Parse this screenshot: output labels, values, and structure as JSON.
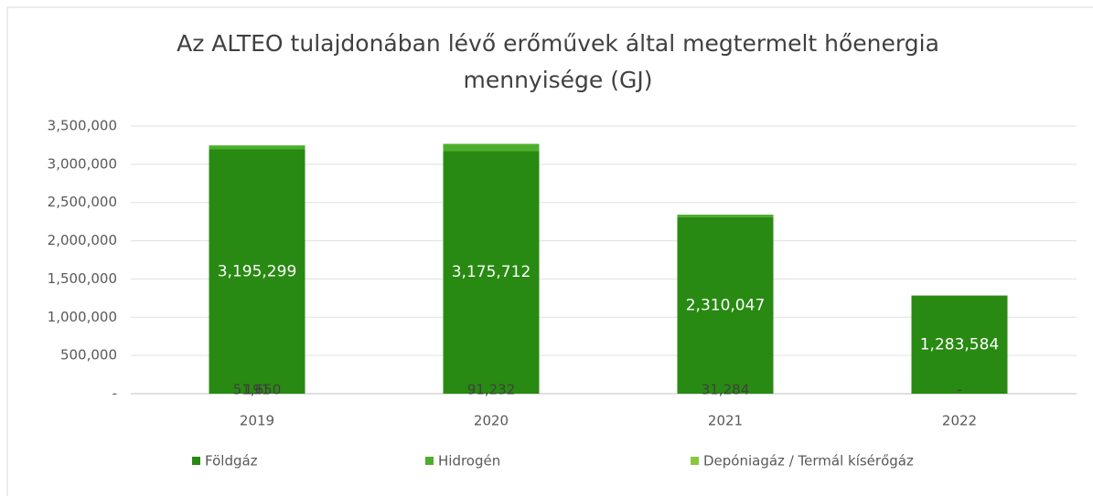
{
  "chart_data": {
    "type": "bar",
    "stacked": true,
    "title": "Az ALTEO tulajdonában lévő erőművek által megtermelt hőenergia mennyisége (GJ)",
    "categories": [
      "2019",
      "2020",
      "2021",
      "2022"
    ],
    "series": [
      {
        "name": "Földgáz",
        "color": "#288a12",
        "values": [
          3195299,
          3175712,
          2310047,
          1283584
        ],
        "value_labels": [
          "3,195,299",
          "3,175,712",
          "2,310,047",
          "1,283,584"
        ]
      },
      {
        "name": "Hidrogén",
        "color": "#4caf2c",
        "values": [
          51650,
          91232,
          31284,
          0
        ],
        "value_labels": [
          "51,650",
          "91,232",
          "31,284",
          "-"
        ]
      },
      {
        "name": "Depóniagáz / Termál kísérőgáz",
        "color": "#8cc63f",
        "values": [
          191,
          null,
          null,
          null
        ],
        "value_labels": [
          "191",
          null,
          null,
          null
        ]
      }
    ],
    "ylim": [
      0,
      3500000
    ],
    "yticks": [
      {
        "value": 0,
        "label": "-"
      },
      {
        "value": 500000,
        "label": "500,000"
      },
      {
        "value": 1000000,
        "label": "1,000,000"
      },
      {
        "value": 1500000,
        "label": "1,500,000"
      },
      {
        "value": 2000000,
        "label": "2,000,000"
      },
      {
        "value": 2500000,
        "label": "2,500,000"
      },
      {
        "value": 3000000,
        "label": "3,000,000"
      },
      {
        "value": 3500000,
        "label": "3,500,000"
      }
    ],
    "grid": true,
    "legend": "bottom"
  }
}
